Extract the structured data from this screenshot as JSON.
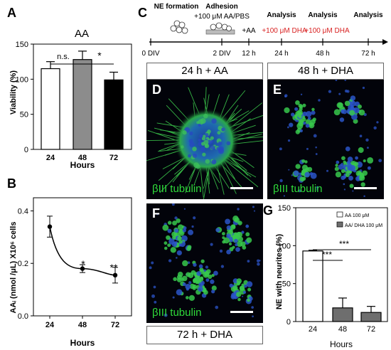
{
  "panels": {
    "A": "A",
    "B": "B",
    "C": "C",
    "D": "D",
    "E": "E",
    "F": "F",
    "G": "G"
  },
  "chart_data": [
    {
      "id": "A",
      "type": "bar",
      "title": "AA",
      "xlabel": "Hours",
      "ylabel": "Viability (%)",
      "categories": [
        "24",
        "48",
        "72"
      ],
      "values": [
        115,
        128,
        99
      ],
      "errors": [
        10,
        12,
        11
      ],
      "colors": [
        "#ffffff",
        "#8c8c8c",
        "#000000"
      ],
      "ylim": [
        0,
        150
      ],
      "yticks": [
        "0",
        "50",
        "100",
        "150"
      ],
      "annotations": [
        "n.s.",
        "*"
      ]
    },
    {
      "id": "B",
      "type": "line",
      "xlabel": "Hours",
      "ylabel": "AAᵢ (nmol /μL) X10⁶ cells",
      "x": [
        24,
        48,
        72
      ],
      "y": [
        0.34,
        0.18,
        0.155
      ],
      "errors": [
        0.04,
        0.015,
        0.03
      ],
      "xticks": [
        "24",
        "48",
        "72"
      ],
      "yticks": [
        "0.0",
        "0.2",
        "0.4"
      ],
      "ylim": [
        0,
        0.45
      ],
      "annotations": [
        "*",
        "**"
      ]
    },
    {
      "id": "G",
      "type": "bar",
      "xlabel": "Hours",
      "ylabel": "NE with neurites (%)",
      "categories": [
        "24",
        "48",
        "72"
      ],
      "series": [
        {
          "name": "AA 100  μM",
          "color": "#ffffff"
        },
        {
          "name": "AA/ DHA 100 μM",
          "color": "#6e6e6e"
        }
      ],
      "values": [
        93,
        18,
        12
      ],
      "errors": [
        1,
        13,
        8
      ],
      "colors": [
        "#ffffff",
        "#6e6e6e",
        "#6e6e6e"
      ],
      "ylim": [
        0,
        150
      ],
      "yticks": [
        "0",
        "50",
        "100",
        "150"
      ],
      "annotations": [
        "***",
        "***"
      ]
    }
  ],
  "timeline": {
    "labels_top": [
      "NE formation",
      "Adhesion",
      "+100 μM AA/PBS",
      "+AA",
      "Analysis",
      "Analysis",
      "Analysis"
    ],
    "labels_red": [
      "+100 μM DHA",
      "+100 μM DHA"
    ],
    "ticks": [
      "0 DIV",
      "2 DIV",
      "12 h",
      "24 h",
      "48 h",
      "72 h"
    ],
    "red_color": "#d81f1f"
  },
  "micrographs": {
    "D": {
      "caption": "24 h + AA",
      "stain": "βIII tubulin"
    },
    "E": {
      "caption": "48 h + DHA",
      "stain": "βIII tubulin"
    },
    "F": {
      "caption": "72 h + DHA",
      "stain": "βIII tubulin"
    }
  }
}
